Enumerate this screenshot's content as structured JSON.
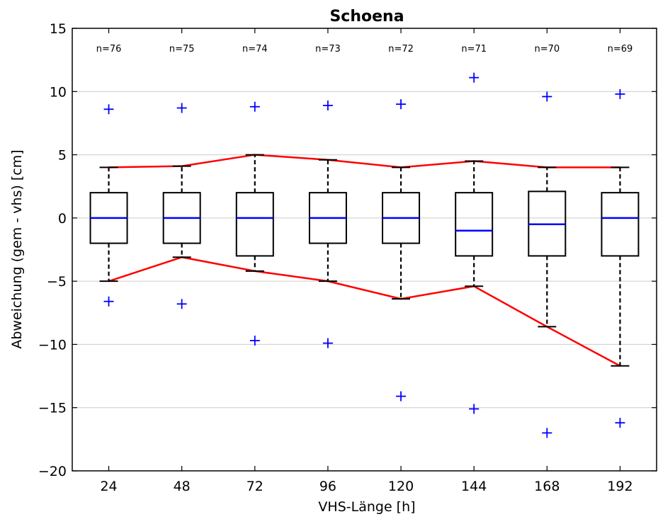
{
  "chart_data": {
    "type": "box",
    "title": "Schoena",
    "xlabel": "VHS-Länge [h]",
    "ylabel": "Abweichung (gem - vhs) [cm]",
    "ylim": [
      -20,
      15
    ],
    "yticks": [
      15,
      10,
      5,
      0,
      -5,
      -10,
      -15,
      -20
    ],
    "ytick_labels": [
      "15",
      "10",
      "5",
      "0",
      "−5",
      "−10",
      "−15",
      "−20"
    ],
    "grid": "horizontal",
    "categories": [
      "24",
      "48",
      "72",
      "96",
      "120",
      "144",
      "168",
      "192"
    ],
    "n_labels": [
      "n=76",
      "n=75",
      "n=74",
      "n=73",
      "n=72",
      "n=71",
      "n=70",
      "n=69"
    ],
    "boxes": [
      {
        "whisker_low": -5.0,
        "q1": -2.0,
        "median": 0.0,
        "q3": 2.0,
        "whisker_high": 4.0,
        "fliers": [
          8.6,
          -6.6
        ]
      },
      {
        "whisker_low": -3.1,
        "q1": -2.0,
        "median": 0.0,
        "q3": 2.0,
        "whisker_high": 4.1,
        "fliers": [
          8.7,
          -6.8
        ]
      },
      {
        "whisker_low": -4.2,
        "q1": -3.0,
        "median": 0.0,
        "q3": 2.0,
        "whisker_high": 5.0,
        "fliers": [
          8.8,
          -9.7
        ]
      },
      {
        "whisker_low": -5.0,
        "q1": -2.0,
        "median": 0.0,
        "q3": 2.0,
        "whisker_high": 4.6,
        "fliers": [
          8.9,
          -9.9
        ]
      },
      {
        "whisker_low": -6.4,
        "q1": -2.0,
        "median": 0.0,
        "q3": 2.0,
        "whisker_high": 4.0,
        "fliers": [
          9.0,
          -14.1
        ]
      },
      {
        "whisker_low": -5.4,
        "q1": -3.0,
        "median": -1.0,
        "q3": 2.0,
        "whisker_high": 4.5,
        "fliers": [
          11.1,
          -15.1
        ]
      },
      {
        "whisker_low": -8.6,
        "q1": -3.0,
        "median": -0.5,
        "q3": 2.1,
        "whisker_high": 4.0,
        "fliers": [
          9.6,
          -17.0
        ]
      },
      {
        "whisker_low": -11.7,
        "q1": -3.0,
        "median": 0.0,
        "q3": 2.0,
        "whisker_high": 4.0,
        "fliers": [
          9.8,
          -16.2
        ]
      }
    ],
    "colors": {
      "box": "#000000",
      "median": "#0000ff",
      "flier": "#0000ff",
      "whisker_line": "#ff0000",
      "grid": "#cccccc"
    }
  }
}
